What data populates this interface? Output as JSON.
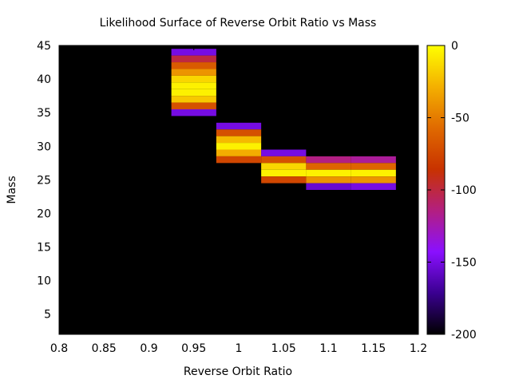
{
  "chart_data": {
    "type": "heatmap",
    "title": "Likelihood Surface of Reverse Orbit Ratio vs Mass",
    "xlabel": "Reverse Orbit Ratio",
    "ylabel": "Mass",
    "xlim": [
      0.8,
      1.2
    ],
    "ylim": [
      2,
      45
    ],
    "xticks": [
      "0.8",
      "0.85",
      "0.9",
      "0.95",
      "1",
      "1.05",
      "1.1",
      "1.15",
      "1.2"
    ],
    "yticks": [
      "5",
      "10",
      "15",
      "20",
      "25",
      "30",
      "35",
      "40",
      "45"
    ],
    "background_value": -200,
    "colorbar": {
      "min": -200,
      "max": 0,
      "ticks": [
        "0",
        "-50",
        "-100",
        "-150",
        "-200"
      ],
      "stops": [
        "#000000",
        "#3a0090",
        "#8a10ff",
        "#b31f80",
        "#c83200",
        "#e06a00",
        "#f4b000",
        "#ffff00"
      ]
    },
    "x_bin_width": 0.05,
    "y_bin_height": 1,
    "cells": [
      {
        "x": 0.95,
        "y": 44,
        "v": -150
      },
      {
        "x": 0.95,
        "y": 43,
        "v": -100
      },
      {
        "x": 0.95,
        "y": 42,
        "v": -65
      },
      {
        "x": 0.95,
        "y": 41,
        "v": -40
      },
      {
        "x": 0.95,
        "y": 40,
        "v": -15
      },
      {
        "x": 0.95,
        "y": 39,
        "v": -5
      },
      {
        "x": 0.95,
        "y": 38,
        "v": -5
      },
      {
        "x": 0.95,
        "y": 37,
        "v": -20
      },
      {
        "x": 0.95,
        "y": 36,
        "v": -70
      },
      {
        "x": 0.95,
        "y": 35,
        "v": -150
      },
      {
        "x": 1.0,
        "y": 33,
        "v": -150
      },
      {
        "x": 1.0,
        "y": 32,
        "v": -70
      },
      {
        "x": 1.0,
        "y": 31,
        "v": -25
      },
      {
        "x": 1.0,
        "y": 30,
        "v": -5
      },
      {
        "x": 1.0,
        "y": 29,
        "v": -30
      },
      {
        "x": 1.0,
        "y": 28,
        "v": -75
      },
      {
        "x": 1.05,
        "y": 29,
        "v": -150
      },
      {
        "x": 1.05,
        "y": 28,
        "v": -70
      },
      {
        "x": 1.05,
        "y": 27,
        "v": -15
      },
      {
        "x": 1.05,
        "y": 26,
        "v": -5
      },
      {
        "x": 1.05,
        "y": 25,
        "v": -75
      },
      {
        "x": 1.1,
        "y": 28,
        "v": -115
      },
      {
        "x": 1.1,
        "y": 27,
        "v": -60
      },
      {
        "x": 1.1,
        "y": 26,
        "v": -5
      },
      {
        "x": 1.1,
        "y": 25,
        "v": -40
      },
      {
        "x": 1.1,
        "y": 24,
        "v": -155
      },
      {
        "x": 1.15,
        "y": 28,
        "v": -120
      },
      {
        "x": 1.15,
        "y": 27,
        "v": -60
      },
      {
        "x": 1.15,
        "y": 26,
        "v": -5
      },
      {
        "x": 1.15,
        "y": 25,
        "v": -40
      },
      {
        "x": 1.15,
        "y": 24,
        "v": -150
      }
    ]
  }
}
